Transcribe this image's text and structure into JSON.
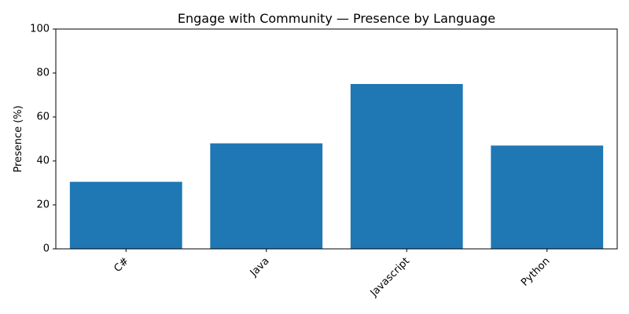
{
  "chart_data": {
    "type": "bar",
    "title": "Engage with Community — Presence by Language",
    "xlabel": "",
    "ylabel": "Presence (%)",
    "categories": [
      "C#",
      "Java",
      "Javascript",
      "Python"
    ],
    "values": [
      30.5,
      48,
      75,
      47
    ],
    "ylim": [
      0,
      100
    ],
    "yticks": [
      0,
      20,
      40,
      60,
      80,
      100
    ],
    "grid": false,
    "bar_color": "#1f77b4"
  }
}
